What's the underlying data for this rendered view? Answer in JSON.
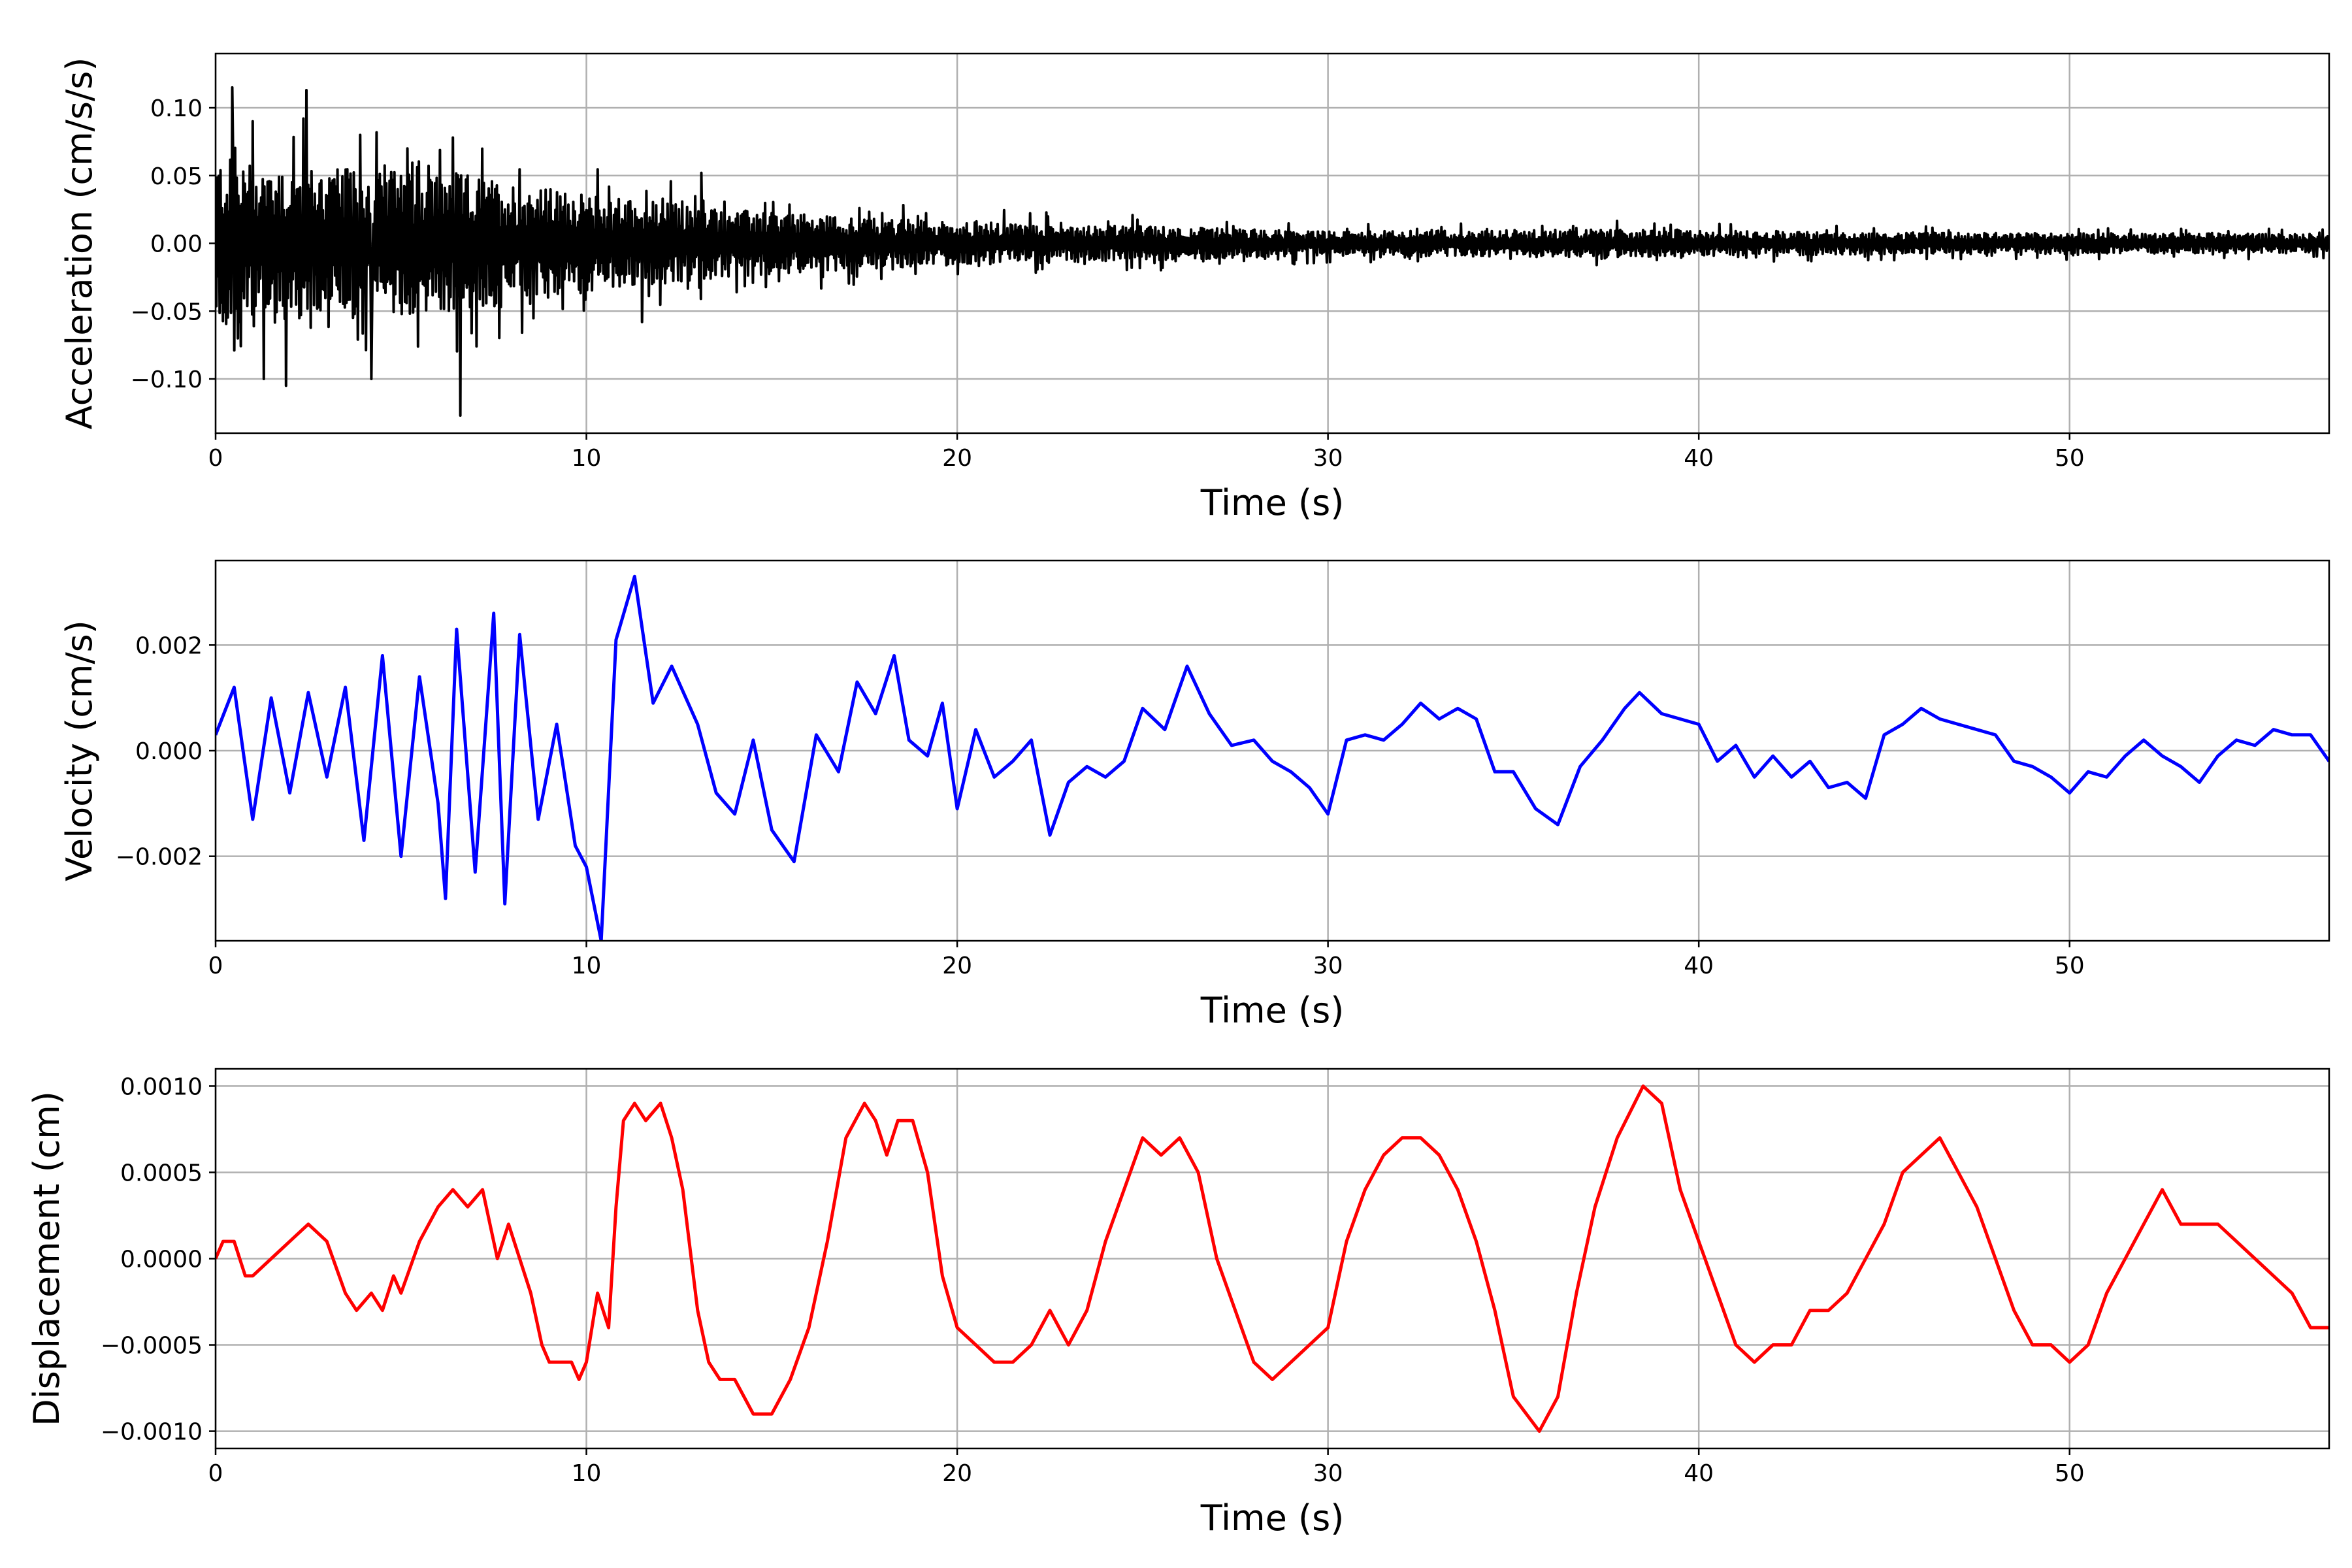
{
  "chart_data": [
    {
      "type": "line",
      "id": "acceleration",
      "xlabel": "Time (s)",
      "ylabel": "Acceleration (cm/s/s)",
      "xlim": [
        0,
        57
      ],
      "ylim": [
        -0.14,
        0.14
      ],
      "xticks": [
        0,
        10,
        20,
        30,
        40,
        50
      ],
      "yticks": [
        -0.1,
        -0.05,
        0.0,
        0.05,
        0.1
      ],
      "ytick_labels": [
        "−0.10",
        "−0.05",
        "0.00",
        "0.05",
        "0.10"
      ],
      "grid": true,
      "color": "#000000",
      "envelope": [
        [
          0,
          0.08
        ],
        [
          3,
          0.07
        ],
        [
          6.5,
          0.065
        ],
        [
          10,
          0.045
        ],
        [
          15,
          0.028
        ],
        [
          20,
          0.02
        ],
        [
          25,
          0.016
        ],
        [
          30,
          0.011
        ],
        [
          37,
          0.013
        ],
        [
          45,
          0.01
        ],
        [
          57,
          0.009
        ]
      ],
      "peaks": [
        [
          0.45,
          0.115
        ],
        [
          0.6,
          -0.07
        ],
        [
          1.0,
          0.09
        ],
        [
          1.3,
          -0.1
        ],
        [
          1.9,
          -0.105
        ],
        [
          2.45,
          0.113
        ],
        [
          4.2,
          -0.1
        ],
        [
          6.6,
          -0.127
        ],
        [
          6.4,
          0.078
        ],
        [
          3.9,
          0.08
        ],
        [
          11.5,
          -0.058
        ],
        [
          13.1,
          0.052
        ]
      ]
    },
    {
      "type": "line",
      "id": "velocity",
      "xlabel": "Time (s)",
      "ylabel": "Velocity (cm/s)",
      "xlim": [
        0,
        57
      ],
      "ylim": [
        -0.0036,
        0.0036
      ],
      "xticks": [
        0,
        10,
        20,
        30,
        40,
        50
      ],
      "yticks": [
        -0.002,
        0.0,
        0.002
      ],
      "ytick_labels": [
        "−0.002",
        "0.000",
        "0.002"
      ],
      "grid": true,
      "color": "#0000ff",
      "x": [
        0,
        0.5,
        1.0,
        1.5,
        2.0,
        2.5,
        3.0,
        3.5,
        4.0,
        4.5,
        5.0,
        5.5,
        6.0,
        6.2,
        6.5,
        7.0,
        7.5,
        7.8,
        8.2,
        8.7,
        9.2,
        9.7,
        10.0,
        10.4,
        10.8,
        11.3,
        11.8,
        12.3,
        13.0,
        13.5,
        14.0,
        14.5,
        15.0,
        15.6,
        16.2,
        16.8,
        17.3,
        17.8,
        18.3,
        18.7,
        19.2,
        19.6,
        20.0,
        20.5,
        21.0,
        21.5,
        22.0,
        22.5,
        23.0,
        23.5,
        24.0,
        24.5,
        25.0,
        25.6,
        26.2,
        26.8,
        27.4,
        28.0,
        28.5,
        29.0,
        29.5,
        30.0,
        30.5,
        31.0,
        31.5,
        32.0,
        32.5,
        33.0,
        33.5,
        34.0,
        34.5,
        35.0,
        35.6,
        36.2,
        36.8,
        37.4,
        38.0,
        38.4,
        39.0,
        39.5,
        40.0,
        40.5,
        41.0,
        41.5,
        42.0,
        42.5,
        43.0,
        43.5,
        44.0,
        44.5,
        45.0,
        45.5,
        46.0,
        46.5,
        47.0,
        47.5,
        48.0,
        48.5,
        49.0,
        49.5,
        50.0,
        50.5,
        51.0,
        51.5,
        52.0,
        52.5,
        53.0,
        53.5,
        54.0,
        54.5,
        55.0,
        55.5,
        56.0,
        56.5,
        57.0
      ],
      "y": [
        0.0003,
        0.0012,
        -0.0013,
        0.001,
        -0.0008,
        0.0011,
        -0.0005,
        0.0012,
        -0.0017,
        0.0018,
        -0.002,
        0.0014,
        -0.001,
        -0.0028,
        0.0023,
        -0.0023,
        0.0026,
        -0.0029,
        0.0022,
        -0.0013,
        0.0005,
        -0.0018,
        -0.0022,
        -0.0036,
        0.0021,
        0.0033,
        0.0009,
        0.0016,
        0.0005,
        -0.0008,
        -0.0012,
        0.0002,
        -0.0015,
        -0.0021,
        0.0003,
        -0.0004,
        0.0013,
        0.0007,
        0.0018,
        0.0002,
        -0.0001,
        0.0009,
        -0.0011,
        0.0004,
        -0.0005,
        -0.0002,
        0.0002,
        -0.0016,
        -0.0006,
        -0.0003,
        -0.0005,
        -0.0002,
        0.0008,
        0.0004,
        0.0016,
        0.0007,
        0.0001,
        0.0002,
        -0.0002,
        -0.0004,
        -0.0007,
        -0.0012,
        0.0002,
        0.0003,
        0.0002,
        0.0005,
        0.0009,
        0.0006,
        0.0008,
        0.0006,
        -0.0004,
        -0.0004,
        -0.0011,
        -0.0014,
        -0.0003,
        0.0002,
        0.0008,
        0.0011,
        0.0007,
        0.0006,
        0.0005,
        -0.0002,
        0.0001,
        -0.0005,
        -0.0001,
        -0.0005,
        -0.0002,
        -0.0007,
        -0.0006,
        -0.0009,
        0.0003,
        0.0005,
        0.0008,
        0.0006,
        0.0005,
        0.0004,
        0.0003,
        -0.0002,
        -0.0003,
        -0.0005,
        -0.0008,
        -0.0004,
        -0.0005,
        -0.0001,
        0.0002,
        -0.0001,
        -0.0003,
        -0.0006,
        -0.0001,
        0.0002,
        0.0001,
        0.0004,
        0.0003,
        0.0003,
        -0.0002
      ]
    },
    {
      "type": "line",
      "id": "displacement",
      "xlabel": "Time (s)",
      "ylabel": "Displacement (cm)",
      "xlim": [
        0,
        57
      ],
      "ylim": [
        -0.0011,
        0.0011
      ],
      "xticks": [
        0,
        10,
        20,
        30,
        40,
        50
      ],
      "yticks": [
        -0.001,
        -0.0005,
        0.0,
        0.0005,
        0.001
      ],
      "ytick_labels": [
        "−0.0010",
        "−0.0005",
        "0.0000",
        "0.0005",
        "0.0010"
      ],
      "grid": true,
      "color": "#ff0000",
      "x": [
        0,
        0.2,
        0.5,
        0.8,
        1.0,
        1.5,
        2.0,
        2.5,
        3.0,
        3.5,
        3.8,
        4.2,
        4.5,
        4.8,
        5.0,
        5.5,
        6.0,
        6.4,
        6.8,
        7.2,
        7.6,
        7.9,
        8.2,
        8.5,
        8.8,
        9.0,
        9.3,
        9.6,
        9.8,
        10.0,
        10.3,
        10.6,
        10.8,
        11.0,
        11.3,
        11.6,
        12.0,
        12.3,
        12.6,
        13.0,
        13.3,
        13.6,
        14.0,
        14.5,
        15.0,
        15.5,
        16.0,
        16.5,
        17.0,
        17.5,
        17.8,
        18.1,
        18.4,
        18.8,
        19.2,
        19.6,
        20.0,
        20.5,
        21.0,
        21.5,
        22.0,
        22.5,
        23.0,
        23.5,
        24.0,
        24.5,
        25.0,
        25.5,
        26.0,
        26.5,
        27.0,
        27.5,
        28.0,
        28.5,
        29.0,
        29.5,
        30.0,
        30.5,
        31.0,
        31.5,
        32.0,
        32.5,
        33.0,
        33.5,
        34.0,
        34.5,
        35.0,
        35.7,
        36.2,
        36.7,
        37.2,
        37.8,
        38.5,
        39.0,
        39.5,
        40.0,
        40.5,
        41.0,
        41.5,
        42.0,
        42.5,
        43.0,
        43.5,
        44.0,
        44.5,
        45.0,
        45.5,
        46.0,
        46.5,
        47.0,
        47.5,
        48.0,
        48.5,
        49.0,
        49.5,
        50.0,
        50.5,
        51.0,
        51.5,
        52.0,
        52.5,
        53.0,
        53.5,
        54.0,
        54.5,
        55.0,
        55.5,
        56.0,
        56.5,
        57.0
      ],
      "y": [
        0.0,
        0.0001,
        0.0001,
        -0.0001,
        -0.0001,
        0.0,
        0.0001,
        0.0002,
        0.0001,
        -0.0002,
        -0.0003,
        -0.0002,
        -0.0003,
        -0.0001,
        -0.0002,
        0.0001,
        0.0003,
        0.0004,
        0.0003,
        0.0004,
        0.0,
        0.0002,
        0.0,
        -0.0002,
        -0.0005,
        -0.0006,
        -0.0006,
        -0.0006,
        -0.0007,
        -0.0006,
        -0.0002,
        -0.0004,
        0.0003,
        0.0008,
        0.0009,
        0.0008,
        0.0009,
        0.0007,
        0.0004,
        -0.0003,
        -0.0006,
        -0.0007,
        -0.0007,
        -0.0009,
        -0.0009,
        -0.0007,
        -0.0004,
        0.0001,
        0.0007,
        0.0009,
        0.0008,
        0.0006,
        0.0008,
        0.0008,
        0.0005,
        -0.0001,
        -0.0004,
        -0.0005,
        -0.0006,
        -0.0006,
        -0.0005,
        -0.0003,
        -0.0005,
        -0.0003,
        0.0001,
        0.0004,
        0.0007,
        0.0006,
        0.0007,
        0.0005,
        0.0,
        -0.0003,
        -0.0006,
        -0.0007,
        -0.0006,
        -0.0005,
        -0.0004,
        0.0001,
        0.0004,
        0.0006,
        0.0007,
        0.0007,
        0.0006,
        0.0004,
        0.0001,
        -0.0003,
        -0.0008,
        -0.001,
        -0.0008,
        -0.0002,
        0.0003,
        0.0007,
        0.001,
        0.0009,
        0.0004,
        0.0001,
        -0.0002,
        -0.0005,
        -0.0006,
        -0.0005,
        -0.0005,
        -0.0003,
        -0.0003,
        -0.0002,
        0.0,
        0.0002,
        0.0005,
        0.0006,
        0.0007,
        0.0005,
        0.0003,
        0.0,
        -0.0003,
        -0.0005,
        -0.0005,
        -0.0006,
        -0.0005,
        -0.0002,
        0.0,
        0.0002,
        0.0004,
        0.0002,
        0.0002,
        0.0002,
        0.0001,
        0.0,
        -0.0001,
        -0.0002,
        -0.0004,
        -0.0004
      ]
    }
  ]
}
